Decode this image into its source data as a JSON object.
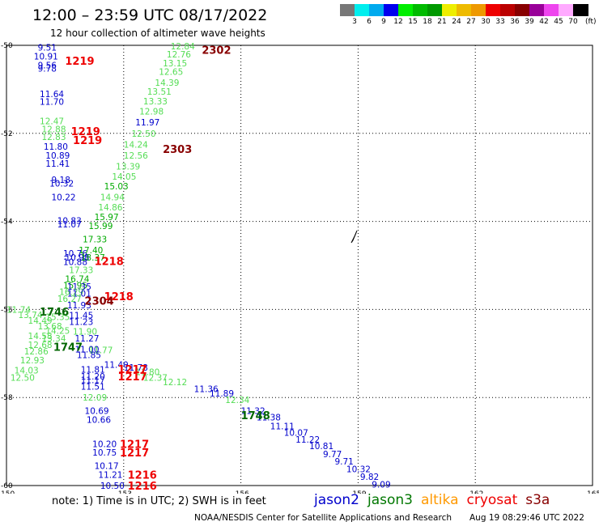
{
  "header": {
    "title": "12:00 – 23:59 UTC 08/17/2022",
    "subtitle": "12 hour collection of altimeter wave heights"
  },
  "legend": {
    "colors": [
      "#777777",
      "#00eeee",
      "#00aaee",
      "#0000ee",
      "#00ee00",
      "#00bb00",
      "#009900",
      "#eeee00",
      "#eebb00",
      "#ee9900",
      "#ee0000",
      "#bb0000",
      "#880000",
      "#990099",
      "#ee44ee",
      "#ffaaff",
      "#000000"
    ],
    "labels": [
      "3",
      "6",
      "9",
      "12",
      "15",
      "18",
      "21",
      "24",
      "27",
      "30",
      "33",
      "36",
      "39",
      "42",
      "45",
      "70"
    ],
    "unit": "(ft)"
  },
  "map": {
    "lat_ticks": [
      "-50",
      "-52",
      "-54",
      "-56",
      "-58",
      "-60"
    ],
    "lon_ticks": [
      "150",
      "153",
      "156",
      "159",
      "162",
      "165"
    ],
    "lat_range": [
      -60,
      -50
    ],
    "lon_range": [
      150,
      165
    ],
    "observations": [
      {
        "lat": -50.05,
        "lon": 150.8,
        "v": "9.51",
        "c": "#0000cc"
      },
      {
        "lat": -50.25,
        "lon": 150.7,
        "v": "10.91",
        "c": "#0000cc"
      },
      {
        "lat": -50.45,
        "lon": 150.8,
        "v": "9.56",
        "c": "#0000cc"
      },
      {
        "lat": -50.52,
        "lon": 150.8,
        "v": "9.78",
        "c": "#0000cc"
      },
      {
        "lat": -51.1,
        "lon": 150.85,
        "v": "11.64",
        "c": "#0000cc"
      },
      {
        "lat": -51.28,
        "lon": 150.85,
        "v": "11.70",
        "c": "#0000cc"
      },
      {
        "lat": -51.72,
        "lon": 150.85,
        "v": "12.47",
        "c": "#55dd55"
      },
      {
        "lat": -51.9,
        "lon": 150.9,
        "v": "12.88",
        "c": "#55dd55"
      },
      {
        "lat": -52.08,
        "lon": 150.9,
        "v": "12.83",
        "c": "#55dd55"
      },
      {
        "lat": -52.3,
        "lon": 150.95,
        "v": "11.80",
        "c": "#0000cc"
      },
      {
        "lat": -52.5,
        "lon": 151.0,
        "v": "10.89",
        "c": "#0000cc"
      },
      {
        "lat": -52.68,
        "lon": 151.0,
        "v": "11.41",
        "c": "#0000cc"
      },
      {
        "lat": -53.05,
        "lon": 151.15,
        "v": "9.18",
        "c": "#0000cc"
      },
      {
        "lat": -53.13,
        "lon": 151.1,
        "v": "10.32",
        "c": "#0000cc"
      },
      {
        "lat": -53.45,
        "lon": 151.15,
        "v": "10.22",
        "c": "#0000cc"
      },
      {
        "lat": -53.98,
        "lon": 151.3,
        "v": "10.83",
        "c": "#0000cc"
      },
      {
        "lat": -54.06,
        "lon": 151.3,
        "v": "11.07",
        "c": "#0000cc"
      },
      {
        "lat": -54.72,
        "lon": 151.45,
        "v": "10.76",
        "c": "#0000cc"
      },
      {
        "lat": -54.82,
        "lon": 151.5,
        "v": "10.98",
        "c": "#0000cc"
      },
      {
        "lat": -54.92,
        "lon": 151.45,
        "v": "10.88",
        "c": "#0000cc"
      },
      {
        "lat": -55.1,
        "lon": 151.6,
        "v": "17.33",
        "c": "#55dd55"
      },
      {
        "lat": -55.3,
        "lon": 151.5,
        "v": "16.74",
        "c": "#00aa00"
      },
      {
        "lat": -55.45,
        "lon": 151.45,
        "v": "15.95",
        "c": "#00aa00"
      },
      {
        "lat": -55.48,
        "lon": 151.55,
        "v": "11.35",
        "c": "#0000cc"
      },
      {
        "lat": -55.6,
        "lon": 151.35,
        "v": "16.29",
        "c": "#55dd55"
      },
      {
        "lat": -55.63,
        "lon": 151.55,
        "v": "11.01",
        "c": "#0000cc"
      },
      {
        "lat": -55.75,
        "lon": 151.3,
        "v": "16.27",
        "c": "#55dd55"
      },
      {
        "lat": -55.9,
        "lon": 151.55,
        "v": "11.93",
        "c": "#0000cc"
      },
      {
        "lat": -56.0,
        "lon": 150.0,
        "v": "11.74",
        "c": "#55dd55"
      },
      {
        "lat": -56.12,
        "lon": 150.3,
        "v": "13.74",
        "c": "#55dd55"
      },
      {
        "lat": -56.17,
        "lon": 151.0,
        "v": "15.35",
        "c": "#55dd55"
      },
      {
        "lat": -56.13,
        "lon": 151.6,
        "v": "11.45",
        "c": "#0000cc"
      },
      {
        "lat": -56.25,
        "lon": 150.55,
        "v": "14.49",
        "c": "#55dd55"
      },
      {
        "lat": -56.28,
        "lon": 151.6,
        "v": "11.23",
        "c": "#0000cc"
      },
      {
        "lat": -56.38,
        "lon": 150.8,
        "v": "13.68",
        "c": "#55dd55"
      },
      {
        "lat": -56.48,
        "lon": 151.0,
        "v": "14.25",
        "c": "#55dd55"
      },
      {
        "lat": -56.5,
        "lon": 151.7,
        "v": "11.90",
        "c": "#55dd55"
      },
      {
        "lat": -56.6,
        "lon": 150.55,
        "v": "14.58",
        "c": "#55dd55"
      },
      {
        "lat": -56.65,
        "lon": 150.9,
        "v": "13.34",
        "c": "#55dd55"
      },
      {
        "lat": -56.65,
        "lon": 151.75,
        "v": "11.27",
        "c": "#0000cc"
      },
      {
        "lat": -56.8,
        "lon": 150.55,
        "v": "12.68",
        "c": "#55dd55"
      },
      {
        "lat": -56.9,
        "lon": 151.75,
        "v": "11.00",
        "c": "#0000cc"
      },
      {
        "lat": -56.92,
        "lon": 152.1,
        "v": "11.77",
        "c": "#55dd55"
      },
      {
        "lat": -56.95,
        "lon": 150.45,
        "v": "12.86",
        "c": "#55dd55"
      },
      {
        "lat": -57.03,
        "lon": 151.8,
        "v": "11.85",
        "c": "#0000cc"
      },
      {
        "lat": -57.15,
        "lon": 150.35,
        "v": "12.93",
        "c": "#55dd55"
      },
      {
        "lat": -57.25,
        "lon": 152.5,
        "v": "11.40",
        "c": "#0000cc"
      },
      {
        "lat": -57.32,
        "lon": 153.0,
        "v": "11.78",
        "c": "#0000cc"
      },
      {
        "lat": -57.36,
        "lon": 151.9,
        "v": "11.81",
        "c": "#0000cc"
      },
      {
        "lat": -57.38,
        "lon": 150.2,
        "v": "14.03",
        "c": "#55dd55"
      },
      {
        "lat": -57.42,
        "lon": 153.3,
        "v": "11.80",
        "c": "#55dd55"
      },
      {
        "lat": -57.52,
        "lon": 151.9,
        "v": "11.20",
        "c": "#0000cc"
      },
      {
        "lat": -57.55,
        "lon": 150.1,
        "v": "12.50",
        "c": "#55dd55"
      },
      {
        "lat": -57.55,
        "lon": 153.5,
        "v": "12.37",
        "c": "#55dd55"
      },
      {
        "lat": -57.6,
        "lon": 151.9,
        "v": "11.17",
        "c": "#0000cc"
      },
      {
        "lat": -57.65,
        "lon": 154.0,
        "v": "12.12",
        "c": "#55dd55"
      },
      {
        "lat": -57.75,
        "lon": 151.9,
        "v": "11.51",
        "c": "#0000cc"
      },
      {
        "lat": -57.8,
        "lon": 154.8,
        "v": "11.36",
        "c": "#0000cc"
      },
      {
        "lat": -57.9,
        "lon": 155.2,
        "v": "11.89",
        "c": "#0000cc"
      },
      {
        "lat": -58.0,
        "lon": 151.95,
        "v": "12.09",
        "c": "#55dd55"
      },
      {
        "lat": -58.05,
        "lon": 155.6,
        "v": "12.34",
        "c": "#55dd55"
      },
      {
        "lat": -58.3,
        "lon": 152.0,
        "v": "10.69",
        "c": "#0000cc"
      },
      {
        "lat": -58.3,
        "lon": 156.0,
        "v": "11.32",
        "c": "#0000cc"
      },
      {
        "lat": -58.45,
        "lon": 156.4,
        "v": "11.38",
        "c": "#0000cc"
      },
      {
        "lat": -58.5,
        "lon": 152.05,
        "v": "10.66",
        "c": "#0000cc"
      },
      {
        "lat": -58.65,
        "lon": 156.75,
        "v": "11.11",
        "c": "#0000cc"
      },
      {
        "lat": -58.8,
        "lon": 157.1,
        "v": "10.07",
        "c": "#0000cc"
      },
      {
        "lat": -58.95,
        "lon": 157.4,
        "v": "11.22",
        "c": "#0000cc"
      },
      {
        "lat": -59.05,
        "lon": 152.2,
        "v": "10.20",
        "c": "#0000cc"
      },
      {
        "lat": -59.1,
        "lon": 157.75,
        "v": "10.81",
        "c": "#0000cc"
      },
      {
        "lat": -59.25,
        "lon": 152.2,
        "v": "10.75",
        "c": "#0000cc"
      },
      {
        "lat": -59.28,
        "lon": 158.1,
        "v": "9.77",
        "c": "#0000cc"
      },
      {
        "lat": -59.45,
        "lon": 158.4,
        "v": "9.71",
        "c": "#0000cc"
      },
      {
        "lat": -59.55,
        "lon": 152.25,
        "v": "10.17",
        "c": "#0000cc"
      },
      {
        "lat": -59.62,
        "lon": 158.7,
        "v": "10.32",
        "c": "#0000cc"
      },
      {
        "lat": -59.75,
        "lon": 152.35,
        "v": "11.21",
        "c": "#0000cc"
      },
      {
        "lat": -59.8,
        "lon": 159.05,
        "v": "9.82",
        "c": "#0000cc"
      },
      {
        "lat": -59.97,
        "lon": 159.35,
        "v": "9.09",
        "c": "#0000cc"
      },
      {
        "lat": -60.0,
        "lon": 152.4,
        "v": "10.50",
        "c": "#0000cc"
      },
      {
        "lat": -50.02,
        "lon": 154.2,
        "v": "12.84",
        "c": "#55dd55"
      },
      {
        "lat": -50.2,
        "lon": 154.1,
        "v": "12.76",
        "c": "#55dd55"
      },
      {
        "lat": -50.4,
        "lon": 154.0,
        "v": "13.15",
        "c": "#55dd55"
      },
      {
        "lat": -50.6,
        "lon": 153.9,
        "v": "12.65",
        "c": "#55dd55"
      },
      {
        "lat": -50.85,
        "lon": 153.8,
        "v": "14.39",
        "c": "#55dd55"
      },
      {
        "lat": -51.05,
        "lon": 153.6,
        "v": "13.51",
        "c": "#55dd55"
      },
      {
        "lat": -51.27,
        "lon": 153.5,
        "v": "13.33",
        "c": "#55dd55"
      },
      {
        "lat": -51.5,
        "lon": 153.4,
        "v": "12.98",
        "c": "#55dd55"
      },
      {
        "lat": -51.75,
        "lon": 153.3,
        "v": "11.97",
        "c": "#0000cc"
      },
      {
        "lat": -52.0,
        "lon": 153.2,
        "v": "12.50",
        "c": "#55dd55"
      },
      {
        "lat": -52.25,
        "lon": 153.0,
        "v": "14.24",
        "c": "#55dd55"
      },
      {
        "lat": -52.5,
        "lon": 153.0,
        "v": "12.56",
        "c": "#55dd55"
      },
      {
        "lat": -52.75,
        "lon": 152.8,
        "v": "13.39",
        "c": "#55dd55"
      },
      {
        "lat": -52.98,
        "lon": 152.7,
        "v": "14.05",
        "c": "#55dd55"
      },
      {
        "lat": -53.2,
        "lon": 152.5,
        "v": "15.03",
        "c": "#00aa00"
      },
      {
        "lat": -53.45,
        "lon": 152.4,
        "v": "14.94",
        "c": "#55dd55"
      },
      {
        "lat": -53.68,
        "lon": 152.35,
        "v": "14.86",
        "c": "#55dd55"
      },
      {
        "lat": -53.9,
        "lon": 152.25,
        "v": "15.97",
        "c": "#00aa00"
      },
      {
        "lat": -54.1,
        "lon": 152.1,
        "v": "15.99",
        "c": "#00aa00"
      },
      {
        "lat": -54.4,
        "lon": 151.95,
        "v": "17.33",
        "c": "#00aa00"
      },
      {
        "lat": -54.65,
        "lon": 151.85,
        "v": "17.40",
        "c": "#00aa00"
      },
      {
        "lat": -54.82,
        "lon": 151.9,
        "v": "18.37",
        "c": "#00aa00"
      }
    ],
    "time_labels": [
      {
        "lat": -50.35,
        "lon": 151.5,
        "t": "1219",
        "c": "#ee0000"
      },
      {
        "lat": -51.95,
        "lon": 151.65,
        "t": "1219",
        "c": "#ee0000"
      },
      {
        "lat": -52.15,
        "lon": 151.7,
        "t": "1219",
        "c": "#ee0000"
      },
      {
        "lat": -54.9,
        "lon": 152.25,
        "t": "1218",
        "c": "#ee0000"
      },
      {
        "lat": -55.7,
        "lon": 152.5,
        "t": "1218",
        "c": "#ee0000"
      },
      {
        "lat": -56.85,
        "lon": 151.2,
        "t": "1747",
        "c": "#006600"
      },
      {
        "lat": -57.35,
        "lon": 152.85,
        "t": "1217",
        "c": "#ee0000"
      },
      {
        "lat": -57.52,
        "lon": 152.85,
        "t": "1217",
        "c": "#ee0000"
      },
      {
        "lat": -59.05,
        "lon": 152.9,
        "t": "1217",
        "c": "#ee0000"
      },
      {
        "lat": -59.25,
        "lon": 152.9,
        "t": "1217",
        "c": "#ee0000"
      },
      {
        "lat": -59.75,
        "lon": 153.1,
        "t": "1216",
        "c": "#ee0000"
      },
      {
        "lat": -60.0,
        "lon": 153.1,
        "t": "1216",
        "c": "#ee0000"
      },
      {
        "lat": -50.1,
        "lon": 155.0,
        "t": "2302",
        "c": "#880000"
      },
      {
        "lat": -52.35,
        "lon": 154.0,
        "t": "2303",
        "c": "#880000"
      },
      {
        "lat": -55.8,
        "lon": 152.0,
        "t": "2304",
        "c": "#880000"
      },
      {
        "lat": -56.05,
        "lon": 150.85,
        "t": "1746",
        "c": "#006600"
      },
      {
        "lat": -58.4,
        "lon": 156.0,
        "t": "1748",
        "c": "#006600"
      }
    ],
    "island_label": "∷"
  },
  "footer": {
    "note": "note:  1) Time is in UTC;  2) SWH is in feet",
    "missions": [
      {
        "name": "jason2",
        "color": "#0000cc"
      },
      {
        "name": "jason3",
        "color": "#007700"
      },
      {
        "name": "altika",
        "color": "#ff9900"
      },
      {
        "name": "cryosat",
        "color": "#ee0000"
      },
      {
        "name": "s3a",
        "color": "#880000"
      }
    ],
    "credit": "NOAA/NESDIS Center for Satellite Applications and Research",
    "timestamp": "Aug 19 08:29:46 UTC 2022"
  }
}
